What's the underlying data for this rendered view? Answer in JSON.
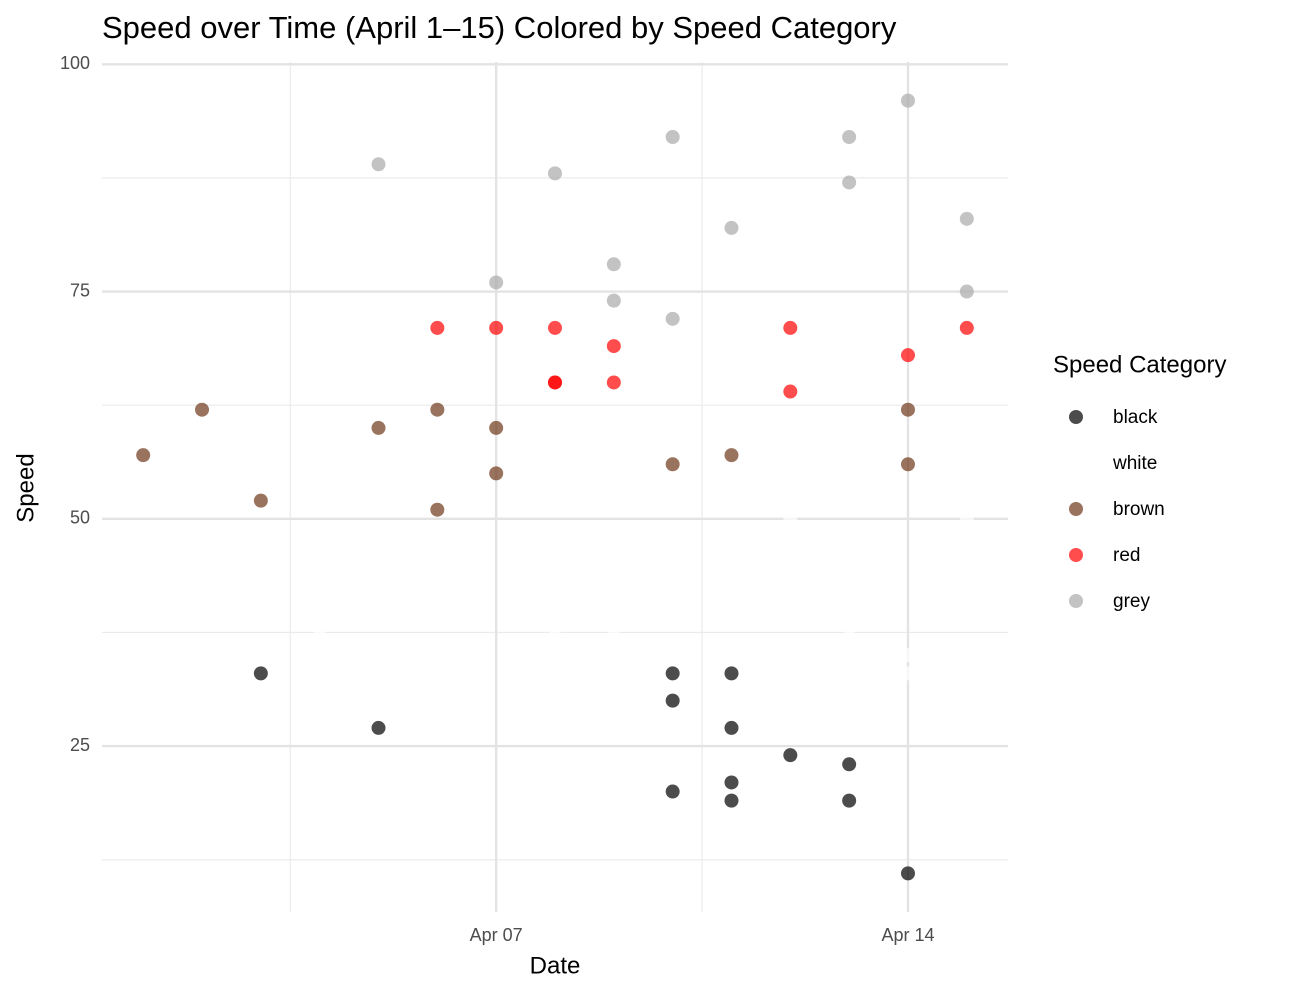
{
  "chart_data": {
    "type": "scatter",
    "title": "Speed over Time (April 1–15) Colored by Speed Category",
    "x_label": "Date",
    "y_label": "Speed",
    "legend_title": "Speed Category",
    "legend_position": "right",
    "grid": true,
    "xlim": [
      0.3,
      15.7
    ],
    "xticks": [
      {
        "value": 7,
        "label": "Apr 07"
      },
      {
        "value": 14,
        "label": "Apr 14"
      }
    ],
    "minor_xticks": [
      3.5,
      10.5
    ],
    "ylim": [
      6.75,
      100.25
    ],
    "yticks": [
      25,
      50,
      75,
      100
    ],
    "minor_yticks": [
      12.5,
      37.5,
      62.5,
      87.5
    ],
    "series": [
      {
        "name": "black",
        "color": "#000000",
        "x": [
          3,
          5,
          10,
          10,
          10,
          11,
          11,
          11,
          11,
          12,
          13,
          13,
          14
        ],
        "values": [
          33,
          27,
          33,
          30,
          20,
          33,
          27,
          21,
          19,
          24,
          23,
          19,
          11
        ]
      },
      {
        "name": "white",
        "color": "#ffffff",
        "x": [
          4,
          8,
          9,
          12,
          13,
          14,
          14,
          15
        ],
        "values": [
          37,
          37,
          37,
          50,
          37,
          35,
          33,
          50
        ]
      },
      {
        "name": "brown",
        "color": "#6e3718",
        "x": [
          1,
          2,
          3,
          5,
          6,
          6,
          7,
          7,
          10,
          11,
          14,
          14
        ],
        "values": [
          57,
          62,
          52,
          60,
          62,
          51,
          60,
          55,
          56,
          57,
          62,
          56
        ]
      },
      {
        "name": "red",
        "color": "#ff0000",
        "x": [
          6,
          7,
          8,
          8,
          8,
          9,
          9,
          12,
          12,
          14,
          15
        ],
        "values": [
          71,
          71,
          71,
          65,
          65,
          69,
          65,
          71,
          64,
          68,
          71
        ]
      },
      {
        "name": "grey",
        "color": "#a9a9a9",
        "x": [
          5,
          7,
          8,
          9,
          9,
          10,
          10,
          11,
          13,
          13,
          14,
          15,
          15
        ],
        "values": [
          89,
          76,
          88,
          78,
          74,
          92,
          72,
          82,
          92,
          87,
          96,
          83,
          75
        ]
      }
    ]
  }
}
